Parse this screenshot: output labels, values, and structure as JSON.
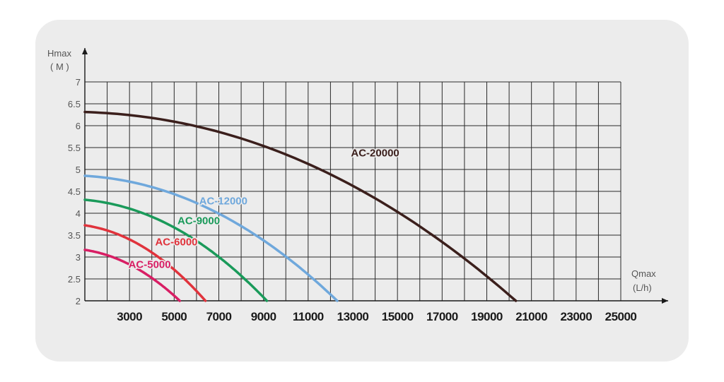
{
  "chart_data": {
    "type": "line",
    "ylabel": "Hmax",
    "yunit": "( M )",
    "xlabel": "Qmax",
    "xunit": "(L/h)",
    "xlim": [
      1000,
      25000
    ],
    "ylim": [
      2,
      7
    ],
    "x_grid_step": 1000,
    "x_ticks": [
      3000,
      5000,
      7000,
      9000,
      11000,
      13000,
      15000,
      17000,
      19000,
      21000,
      23000,
      25000
    ],
    "y_ticks": [
      "2",
      "2.5",
      "3",
      "3.5",
      "4",
      "4.5",
      "5",
      "5.5",
      "6",
      "6.5",
      "7"
    ],
    "y_tick_values": [
      2,
      2.5,
      3,
      3.5,
      4,
      4.5,
      5,
      5.5,
      6,
      6.5,
      7
    ],
    "grid": true,
    "series": [
      {
        "name": "AC-20000",
        "color": "#3b1f1c",
        "max_head": 6.32,
        "max_flow": 20300,
        "exponent": 2.1,
        "label_x": 14000,
        "label_y": 5.3
      },
      {
        "name": "AC-12000",
        "color": "#6fa8dc",
        "max_head": 4.87,
        "max_flow": 12300,
        "exponent": 2.1,
        "label_x": 7200,
        "label_y": 4.2
      },
      {
        "name": "AC-9000",
        "color": "#1a9a5a",
        "max_head": 4.33,
        "max_flow": 9150,
        "exponent": 2.1,
        "label_x": 6100,
        "label_y": 3.75
      },
      {
        "name": "AC-6000",
        "color": "#e0333c",
        "max_head": 3.76,
        "max_flow": 6400,
        "exponent": 2.1,
        "label_x": 5100,
        "label_y": 3.27
      },
      {
        "name": "AC-5000",
        "color": "#d81e64",
        "max_head": 3.2,
        "max_flow": 5250,
        "exponent": 2.1,
        "label_x": 3900,
        "label_y": 2.75
      }
    ]
  }
}
